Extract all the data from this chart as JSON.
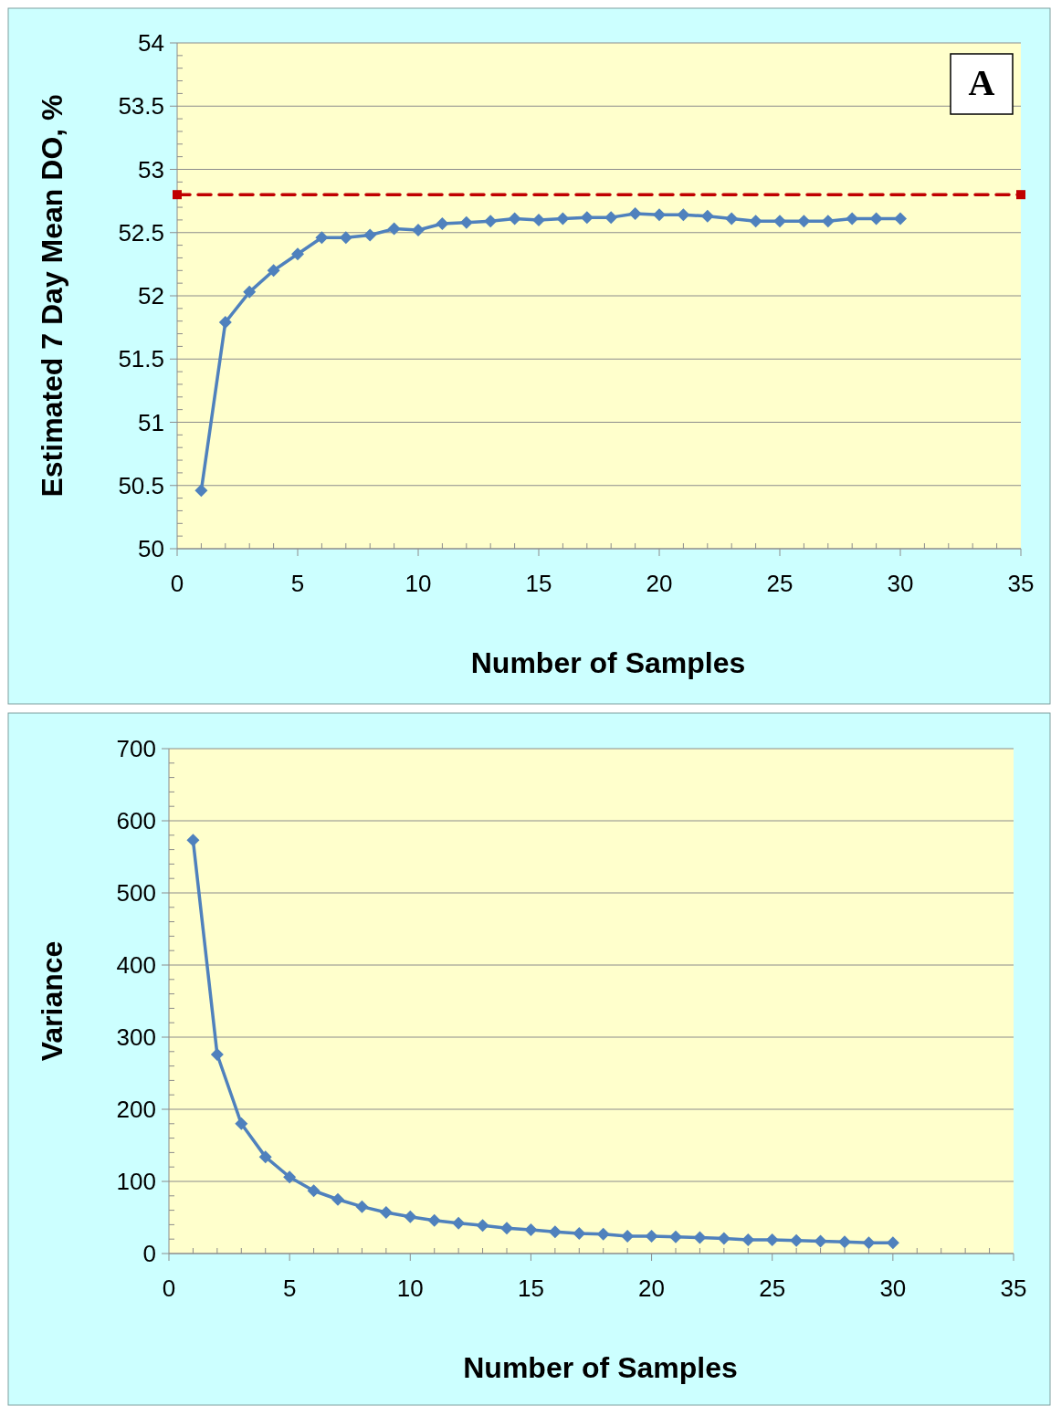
{
  "chart_data": [
    {
      "type": "line",
      "xlabel": "Number of Samples",
      "ylabel": "Estimated 7 Day Mean DO, %",
      "annotations": [
        "A"
      ],
      "xlim": [
        0,
        35
      ],
      "xticks": [
        0,
        5,
        10,
        15,
        20,
        25,
        30,
        35
      ],
      "ylim": [
        50,
        54
      ],
      "yticks": [
        50,
        50.5,
        51,
        51.5,
        52,
        52.5,
        53,
        53.5,
        54
      ],
      "grid": "y",
      "marker": "diamond",
      "line_style": "solid",
      "x": [
        1,
        2,
        3,
        4,
        5,
        6,
        7,
        8,
        9,
        10,
        11,
        12,
        13,
        14,
        15,
        16,
        17,
        18,
        19,
        20,
        21,
        22,
        23,
        24,
        25,
        26,
        27,
        28,
        29,
        30
      ],
      "series": [
        {
          "color": "#4f81bd",
          "values": [
            50.46,
            51.79,
            52.03,
            52.2,
            52.33,
            52.46,
            52.46,
            52.48,
            52.53,
            52.52,
            52.57,
            52.58,
            52.59,
            52.61,
            52.6,
            52.61,
            52.62,
            52.62,
            52.65,
            52.64,
            52.64,
            52.63,
            52.61,
            52.59,
            52.59,
            52.59,
            52.59,
            52.61,
            52.61,
            52.61
          ]
        },
        {
          "type": "line",
          "color": "#c00000",
          "marker": "square",
          "line_style": "dashed",
          "x": [
            0,
            35
          ],
          "values": [
            52.8,
            52.8
          ]
        }
      ]
    },
    {
      "type": "line",
      "xlabel": "Number of Samples",
      "ylabel": "Variance",
      "xlim": [
        0,
        35
      ],
      "xticks": [
        0,
        5,
        10,
        15,
        20,
        25,
        30,
        35
      ],
      "ylim": [
        0,
        700
      ],
      "yticks": [
        0,
        100,
        200,
        300,
        400,
        500,
        600,
        700
      ],
      "grid": "y",
      "marker": "diamond",
      "line_style": "solid",
      "x": [
        1,
        2,
        3,
        4,
        5,
        6,
        7,
        8,
        9,
        10,
        11,
        12,
        13,
        14,
        15,
        16,
        17,
        18,
        19,
        20,
        21,
        22,
        23,
        24,
        25,
        26,
        27,
        28,
        29,
        30
      ],
      "series": [
        {
          "color": "#4f81bd",
          "values": [
            573,
            276,
            180,
            134,
            106,
            87,
            75,
            65,
            57,
            51,
            46,
            42,
            39,
            35,
            33,
            30,
            28,
            27,
            24,
            24,
            23,
            22,
            21,
            19,
            19,
            18,
            17,
            16,
            15,
            15
          ]
        }
      ]
    }
  ]
}
